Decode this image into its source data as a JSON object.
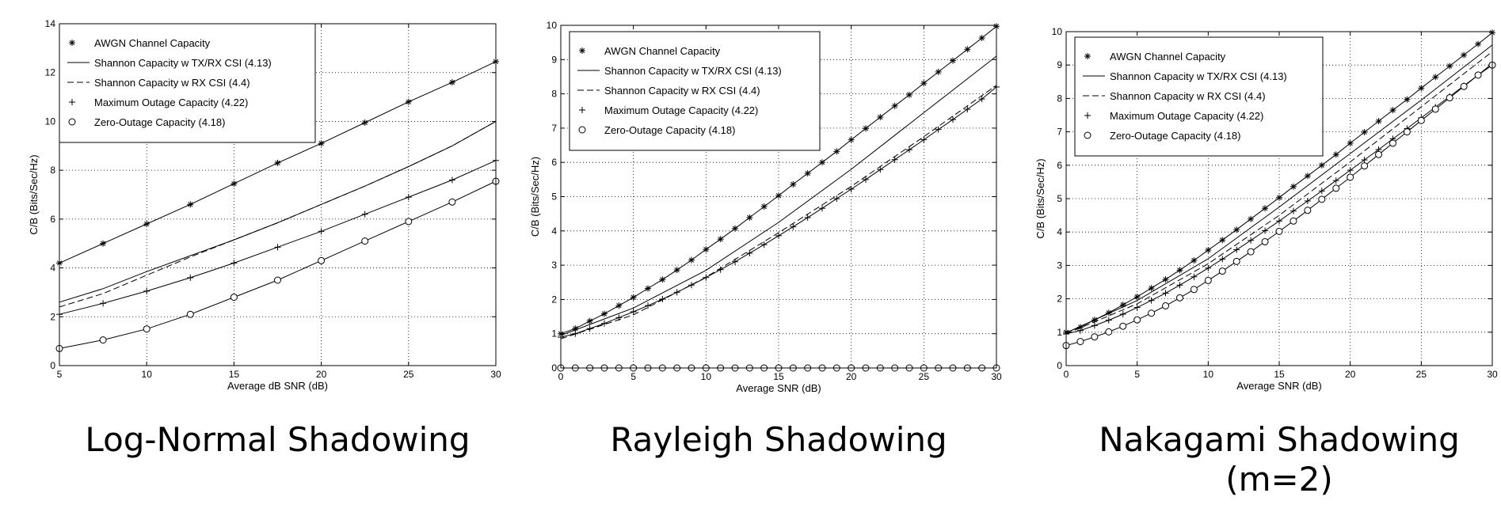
{
  "chart_data": [
    {
      "type": "line",
      "caption_lines": [
        "Log-Normal Shadowing"
      ],
      "xlabel": "Average dB SNR (dB)",
      "ylabel": "C/B (Bits/Sec/Hz)",
      "xlim": [
        5,
        30
      ],
      "ylim": [
        0,
        14
      ],
      "xticks": [
        5,
        10,
        15,
        20,
        25,
        30
      ],
      "yticks": [
        0,
        2,
        4,
        6,
        8,
        10,
        12,
        14
      ],
      "grid": true,
      "legend_position": "top-left",
      "series": [
        {
          "name": "AWGN Channel Capacity",
          "style": "solid",
          "marker": "star",
          "x": [
            5,
            7.5,
            10,
            12.5,
            15,
            17.5,
            20,
            22.5,
            25,
            27.5,
            30
          ],
          "y": [
            4.2,
            5.0,
            5.8,
            6.6,
            7.45,
            8.3,
            9.1,
            9.95,
            10.8,
            11.6,
            12.45
          ]
        },
        {
          "name": "Shannon Capacity w TX/RX CSI (4.13)",
          "style": "solid",
          "marker": "none",
          "x": [
            5,
            7.5,
            10,
            12.5,
            15,
            17.5,
            20,
            22.5,
            25,
            27.5,
            30
          ],
          "y": [
            2.6,
            3.15,
            3.85,
            4.5,
            5.15,
            5.85,
            6.6,
            7.35,
            8.15,
            9.0,
            10.0
          ]
        },
        {
          "name": "Shannon Capacity w RX CSI (4.4)",
          "style": "dashed",
          "marker": "none",
          "x": [
            5,
            7.5,
            10,
            12.5,
            15,
            17.5,
            20,
            22.5,
            25,
            27.5,
            30
          ],
          "y": [
            2.4,
            2.95,
            3.7,
            4.45,
            5.15,
            5.85,
            6.6,
            7.35,
            8.15,
            9.0,
            10.0
          ]
        },
        {
          "name": "Maximum Outage Capacity (4.22)",
          "style": "solid",
          "marker": "plus",
          "x": [
            5,
            7.5,
            10,
            12.5,
            15,
            17.5,
            20,
            22.5,
            25,
            27.5,
            30
          ],
          "y": [
            2.1,
            2.55,
            3.05,
            3.6,
            4.2,
            4.85,
            5.5,
            6.2,
            6.9,
            7.6,
            8.4
          ]
        },
        {
          "name": "Zero-Outage Capacity (4.18)",
          "style": "solid",
          "marker": "circle",
          "x": [
            5,
            7.5,
            10,
            12.5,
            15,
            17.5,
            20,
            22.5,
            25,
            27.5,
            30
          ],
          "y": [
            0.7,
            1.05,
            1.5,
            2.1,
            2.8,
            3.5,
            4.3,
            5.1,
            5.9,
            6.7,
            7.55
          ]
        }
      ]
    },
    {
      "type": "line",
      "caption_lines": [
        "Rayleigh Shadowing"
      ],
      "xlabel": "Average SNR (dB)",
      "ylabel": "C/B (Bits/Sec/Hz)",
      "xlim": [
        0,
        30
      ],
      "ylim": [
        0,
        10
      ],
      "xticks": [
        0,
        5,
        10,
        15,
        20,
        25,
        30
      ],
      "yticks": [
        0,
        1,
        2,
        3,
        4,
        5,
        6,
        7,
        8,
        9,
        10
      ],
      "grid": true,
      "legend_position": "top-left",
      "series": [
        {
          "name": "AWGN Channel Capacity",
          "style": "solid",
          "marker": "star",
          "x": [
            0,
            1,
            2,
            3,
            4,
            5,
            6,
            7,
            8,
            9,
            10,
            11,
            12,
            13,
            14,
            15,
            16,
            17,
            18,
            19,
            20,
            21,
            22,
            23,
            24,
            25,
            26,
            27,
            28,
            29,
            30
          ],
          "y": [
            1.0,
            1.15,
            1.37,
            1.58,
            1.82,
            2.06,
            2.32,
            2.58,
            2.86,
            3.15,
            3.46,
            3.76,
            4.07,
            4.39,
            4.71,
            5.03,
            5.36,
            5.68,
            6.0,
            6.32,
            6.66,
            6.99,
            7.32,
            7.65,
            7.97,
            8.31,
            8.64,
            8.97,
            9.3,
            9.63,
            9.97
          ]
        },
        {
          "name": "Shannon Capacity w TX/RX CSI (4.13)",
          "style": "solid",
          "marker": "none",
          "x": [
            0,
            5,
            10,
            15,
            20,
            25,
            30
          ],
          "y": [
            0.95,
            1.75,
            2.85,
            4.25,
            5.8,
            7.45,
            9.1
          ]
        },
        {
          "name": "Shannon Capacity w RX CSI (4.4)",
          "style": "dashed",
          "marker": "none",
          "x": [
            0,
            5,
            10,
            15,
            20,
            25,
            30
          ],
          "y": [
            0.85,
            1.55,
            2.65,
            3.95,
            5.3,
            6.75,
            8.25
          ]
        },
        {
          "name": "Maximum Outage Capacity (4.22)",
          "style": "solid",
          "marker": "plus",
          "x": [
            0,
            1,
            2,
            3,
            4,
            5,
            6,
            7,
            8,
            9,
            10,
            11,
            12,
            13,
            14,
            15,
            16,
            17,
            18,
            19,
            20,
            21,
            22,
            23,
            24,
            25,
            26,
            27,
            28,
            29,
            30
          ],
          "y": [
            0.9,
            1.0,
            1.15,
            1.3,
            1.47,
            1.64,
            1.82,
            2.01,
            2.21,
            2.42,
            2.64,
            2.87,
            3.1,
            3.35,
            3.6,
            3.86,
            4.12,
            4.39,
            4.66,
            4.94,
            5.22,
            5.5,
            5.79,
            6.08,
            6.37,
            6.66,
            6.96,
            7.25,
            7.55,
            7.85,
            8.2
          ]
        },
        {
          "name": "Zero-Outage Capacity (4.18)",
          "style": "solid",
          "marker": "circle",
          "x": [
            0,
            1,
            2,
            3,
            4,
            5,
            6,
            7,
            8,
            9,
            10,
            11,
            12,
            13,
            14,
            15,
            16,
            17,
            18,
            19,
            20,
            21,
            22,
            23,
            24,
            25,
            26,
            27,
            28,
            29,
            30
          ],
          "y": [
            0,
            0,
            0,
            0,
            0,
            0,
            0,
            0,
            0,
            0,
            0,
            0,
            0,
            0,
            0,
            0,
            0,
            0,
            0,
            0,
            0,
            0,
            0,
            0,
            0,
            0,
            0,
            0,
            0,
            0,
            0
          ]
        }
      ]
    },
    {
      "type": "line",
      "caption_lines": [
        "Nakagami Shadowing",
        "(m=2)"
      ],
      "xlabel": "Average SNR (dB)",
      "ylabel": "C/B (Bits/Sec/Hz)",
      "xlim": [
        0,
        30
      ],
      "ylim": [
        0,
        10
      ],
      "xticks": [
        0,
        5,
        10,
        15,
        20,
        25,
        30
      ],
      "yticks": [
        0,
        1,
        2,
        3,
        4,
        5,
        6,
        7,
        8,
        9,
        10
      ],
      "grid": true,
      "legend_position": "top-left",
      "series": [
        {
          "name": "AWGN Channel Capacity",
          "style": "solid",
          "marker": "star",
          "x": [
            0,
            1,
            2,
            3,
            4,
            5,
            6,
            7,
            8,
            9,
            10,
            11,
            12,
            13,
            14,
            15,
            16,
            17,
            18,
            19,
            20,
            21,
            22,
            23,
            24,
            25,
            26,
            27,
            28,
            29,
            30
          ],
          "y": [
            1.0,
            1.15,
            1.37,
            1.58,
            1.82,
            2.06,
            2.32,
            2.58,
            2.86,
            3.15,
            3.46,
            3.76,
            4.07,
            4.39,
            4.71,
            5.03,
            5.36,
            5.68,
            6.0,
            6.32,
            6.66,
            6.99,
            7.32,
            7.65,
            7.97,
            8.31,
            8.64,
            8.97,
            9.3,
            9.63,
            9.97
          ]
        },
        {
          "name": "Shannon Capacity w TX/RX CSI (4.13)",
          "style": "solid",
          "marker": "none",
          "x": [
            0,
            5,
            10,
            15,
            20,
            25,
            30
          ],
          "y": [
            0.98,
            1.95,
            3.2,
            4.75,
            6.35,
            7.95,
            9.6
          ]
        },
        {
          "name": "Shannon Capacity w RX CSI (4.4)",
          "style": "dashed",
          "marker": "none",
          "x": [
            0,
            5,
            10,
            15,
            20,
            25,
            30
          ],
          "y": [
            0.95,
            1.85,
            3.05,
            4.5,
            6.1,
            7.75,
            9.4
          ]
        },
        {
          "name": "Maximum Outage Capacity (4.22)",
          "style": "solid",
          "marker": "plus",
          "x": [
            0,
            1,
            2,
            3,
            4,
            5,
            6,
            7,
            8,
            9,
            10,
            11,
            12,
            13,
            14,
            15,
            16,
            17,
            18,
            19,
            20,
            21,
            22,
            23,
            24,
            25,
            26,
            27,
            28,
            29,
            30
          ],
          "y": [
            0.95,
            1.05,
            1.2,
            1.36,
            1.54,
            1.74,
            1.95,
            2.17,
            2.41,
            2.66,
            2.92,
            3.19,
            3.47,
            3.75,
            4.04,
            4.33,
            4.63,
            4.93,
            5.23,
            5.54,
            5.85,
            6.16,
            6.47,
            6.79,
            7.1,
            7.42,
            7.74,
            8.06,
            8.38,
            8.7,
            9.05
          ]
        },
        {
          "name": "Zero-Outage Capacity (4.18)",
          "style": "solid",
          "marker": "circle",
          "x": [
            0,
            1,
            2,
            3,
            4,
            5,
            6,
            7,
            8,
            9,
            10,
            11,
            12,
            13,
            14,
            15,
            16,
            17,
            18,
            19,
            20,
            21,
            22,
            23,
            24,
            25,
            26,
            27,
            28,
            29,
            30
          ],
          "y": [
            0.6,
            0.72,
            0.86,
            1.01,
            1.18,
            1.37,
            1.57,
            1.79,
            2.03,
            2.28,
            2.55,
            2.83,
            3.12,
            3.41,
            3.71,
            4.02,
            4.33,
            4.65,
            4.98,
            5.31,
            5.64,
            5.98,
            6.32,
            6.66,
            7.0,
            7.34,
            7.68,
            8.02,
            8.36,
            8.7,
            9.0
          ]
        }
      ]
    }
  ]
}
